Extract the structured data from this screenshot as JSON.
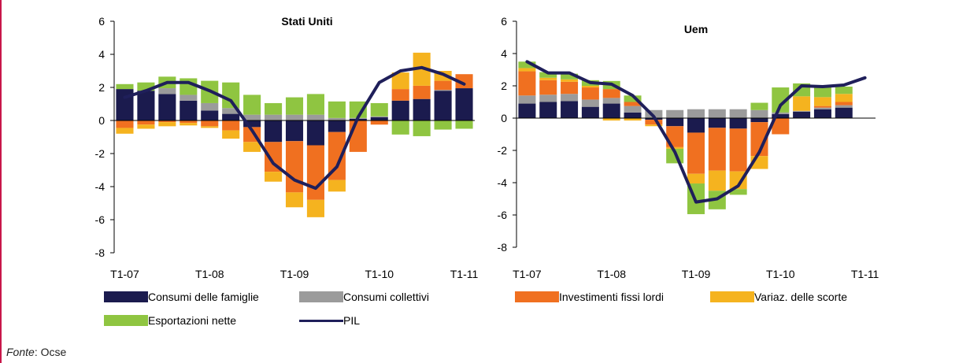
{
  "source": {
    "label": "Fonte",
    "text": ": Ocse"
  },
  "colors": {
    "consumi_famiglie": "#1b1b4e",
    "consumi_collettivi": "#9b9b9b",
    "investimenti": "#f07020",
    "scorte": "#f5b31f",
    "esportazioni": "#8fc541",
    "pil": "#1f1f5a"
  },
  "legend": [
    {
      "key": "consumi_famiglie",
      "label": "Consumi delle famiglie",
      "kind": "bar"
    },
    {
      "key": "consumi_collettivi",
      "label": "Consumi collettivi",
      "kind": "bar"
    },
    {
      "key": "investimenti",
      "label": "Investimenti fissi lordi",
      "kind": "bar"
    },
    {
      "key": "scorte",
      "label": "Variaz. delle scorte",
      "kind": "bar"
    },
    {
      "key": "esportazioni",
      "label": "Esportazioni nette",
      "kind": "bar"
    },
    {
      "key": "pil",
      "label": "PIL",
      "kind": "line"
    }
  ],
  "chart_data": [
    {
      "type": "bar",
      "title": "Stati Uniti",
      "ylim": [
        -8,
        6
      ],
      "yticks": [
        6,
        4,
        2,
        0,
        -2,
        -4,
        -6,
        -8
      ],
      "xtick_labels": [
        "T1-07",
        "T1-08",
        "T1-09",
        "T1-10",
        "T1-11"
      ],
      "categories": [
        "T1-07",
        "T2-07",
        "T3-07",
        "T4-07",
        "T1-08",
        "T2-08",
        "T3-08",
        "T4-08",
        "T1-09",
        "T2-09",
        "T3-09",
        "T4-09",
        "T1-10",
        "T2-10",
        "T3-10",
        "T4-10",
        "T1-11"
      ],
      "series": [
        {
          "key": "consumi_famiglie",
          "values": [
            1.9,
            1.8,
            1.6,
            1.2,
            0.6,
            0.4,
            -0.4,
            -1.3,
            -1.25,
            -1.5,
            -0.7,
            0.1,
            0.2,
            1.2,
            1.3,
            1.8,
            1.95
          ]
        },
        {
          "key": "consumi_collettivi",
          "values": [
            0.0,
            0.0,
            0.35,
            0.35,
            0.45,
            0.35,
            0.35,
            0.35,
            0.35,
            0.35,
            0.15,
            0.05,
            0.05,
            0.0,
            0.0,
            0.05,
            0.0
          ]
        },
        {
          "key": "investimenti",
          "values": [
            -0.45,
            -0.25,
            -0.1,
            -0.15,
            -0.35,
            -0.6,
            -0.9,
            -1.8,
            -3.1,
            -3.3,
            -2.9,
            -1.9,
            -0.25,
            0.7,
            0.8,
            0.55,
            0.85
          ]
        },
        {
          "key": "scorte",
          "values": [
            -0.35,
            -0.25,
            -0.25,
            -0.15,
            -0.1,
            -0.5,
            -0.6,
            -0.6,
            -0.9,
            -1.05,
            -0.7,
            0.0,
            0.0,
            1.0,
            2.0,
            0.6,
            0.0
          ]
        },
        {
          "key": "esportazioni",
          "values": [
            0.3,
            0.5,
            0.7,
            1.0,
            1.35,
            1.55,
            1.2,
            0.7,
            1.05,
            1.25,
            1.0,
            1.0,
            0.8,
            -0.85,
            -0.95,
            -0.55,
            -0.5
          ]
        }
      ],
      "line": {
        "key": "pil",
        "values": [
          1.4,
          1.8,
          2.3,
          2.3,
          1.8,
          1.2,
          -0.6,
          -2.6,
          -3.6,
          -4.1,
          -2.8,
          0.2,
          2.3,
          3.0,
          3.2,
          2.8,
          2.2
        ]
      }
    },
    {
      "type": "bar",
      "title": "Uem",
      "ylim": [
        -8,
        6
      ],
      "yticks": [
        6,
        4,
        2,
        0,
        -2,
        -4,
        -6,
        -8
      ],
      "xtick_labels": [
        "T1-07",
        "T1-08",
        "T1-09",
        "T1-10",
        "T1-11"
      ],
      "categories": [
        "T1-07",
        "T2-07",
        "T3-07",
        "T4-07",
        "T1-08",
        "T2-08",
        "T3-08",
        "T4-08",
        "T1-09",
        "T2-09",
        "T3-09",
        "T4-09",
        "T1-10",
        "T2-10",
        "T3-10",
        "T4-10",
        "T1-11"
      ],
      "series": [
        {
          "key": "consumi_famiglie",
          "values": [
            0.9,
            1.0,
            1.05,
            0.7,
            0.9,
            0.35,
            -0.1,
            -0.5,
            -0.9,
            -0.6,
            -0.65,
            -0.25,
            0.25,
            0.4,
            0.55,
            0.65,
            0.0
          ]
        },
        {
          "key": "consumi_collettivi",
          "values": [
            0.5,
            0.45,
            0.45,
            0.45,
            0.35,
            0.4,
            0.5,
            0.5,
            0.55,
            0.55,
            0.55,
            0.5,
            0.1,
            0.05,
            0.1,
            0.15,
            0.0
          ]
        },
        {
          "key": "investimenti",
          "values": [
            1.5,
            0.9,
            0.75,
            0.75,
            0.55,
            0.25,
            -0.3,
            -1.3,
            -2.55,
            -2.65,
            -2.65,
            -2.1,
            -1.0,
            0.0,
            0.1,
            0.2,
            0.0
          ]
        },
        {
          "key": "scorte",
          "values": [
            0.2,
            0.15,
            0.15,
            0.1,
            -0.15,
            -0.15,
            -0.1,
            -0.1,
            -0.6,
            -1.25,
            -1.1,
            -0.8,
            0.0,
            0.9,
            0.55,
            0.5,
            0.0
          ]
        },
        {
          "key": "esportazioni",
          "values": [
            0.4,
            0.35,
            0.35,
            0.35,
            0.5,
            0.4,
            0.0,
            -0.9,
            -1.9,
            -1.15,
            -0.35,
            0.45,
            1.55,
            0.8,
            0.7,
            0.45,
            0.0
          ]
        }
      ],
      "line": {
        "key": "pil",
        "values": [
          3.5,
          2.8,
          2.8,
          2.2,
          2.1,
          1.4,
          0.1,
          -2.1,
          -5.2,
          -5.0,
          -4.2,
          -2.1,
          0.8,
          2.0,
          1.95,
          2.05,
          2.5
        ]
      }
    }
  ]
}
